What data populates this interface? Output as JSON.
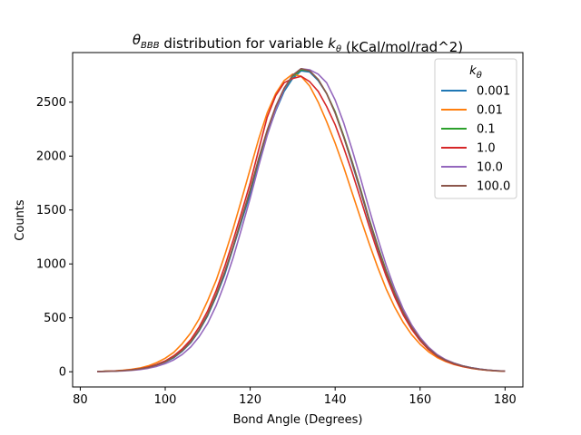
{
  "chart_data": {
    "type": "line",
    "title": "θBBB distribution for variable kθ (kCal/mol/rad^2)",
    "xlabel": "Bond Angle (Degrees)",
    "ylabel": "Counts",
    "xlim": [
      78.2,
      184.2
    ],
    "ylim": [
      -141,
      2960
    ],
    "xticks": [
      80,
      100,
      120,
      140,
      160,
      180
    ],
    "yticks": [
      0,
      500,
      1000,
      1500,
      2000,
      2500
    ],
    "grid": false,
    "legend": {
      "title": "kθ",
      "placement": "top-right"
    },
    "x": [
      84,
      86,
      88,
      90,
      92,
      94,
      96,
      98,
      100,
      102,
      104,
      106,
      108,
      110,
      112,
      114,
      116,
      118,
      120,
      122,
      124,
      126,
      128,
      130,
      132,
      134,
      136,
      138,
      140,
      142,
      144,
      146,
      148,
      150,
      152,
      154,
      156,
      158,
      160,
      162,
      164,
      166,
      168,
      170,
      172,
      174,
      176,
      178,
      180
    ],
    "series": [
      {
        "name": "0.001",
        "color": "#1f77b4",
        "values": [
          2,
          4,
          6,
          10,
          16,
          25,
          40,
          60,
          90,
          130,
          190,
          270,
          380,
          520,
          700,
          900,
          1150,
          1400,
          1650,
          1950,
          2200,
          2420,
          2600,
          2720,
          2790,
          2780,
          2700,
          2580,
          2400,
          2180,
          1930,
          1670,
          1400,
          1150,
          920,
          720,
          550,
          410,
          300,
          215,
          150,
          110,
          80,
          55,
          38,
          25,
          15,
          10,
          6
        ]
      },
      {
        "name": "0.01",
        "color": "#ff7f0e",
        "values": [
          2,
          5,
          8,
          14,
          22,
          35,
          55,
          85,
          125,
          180,
          260,
          360,
          490,
          660,
          850,
          1080,
          1330,
          1600,
          1880,
          2160,
          2400,
          2580,
          2700,
          2760,
          2740,
          2650,
          2500,
          2320,
          2120,
          1900,
          1660,
          1420,
          1190,
          970,
          770,
          600,
          460,
          345,
          255,
          185,
          132,
          95,
          67,
          47,
          32,
          21,
          13,
          8,
          5
        ]
      },
      {
        "name": "0.1",
        "color": "#2ca02c",
        "values": [
          2,
          4,
          6,
          10,
          16,
          26,
          40,
          62,
          92,
          135,
          195,
          275,
          385,
          530,
          710,
          920,
          1160,
          1420,
          1680,
          1970,
          2230,
          2450,
          2620,
          2740,
          2800,
          2790,
          2710,
          2580,
          2410,
          2190,
          1950,
          1690,
          1420,
          1170,
          940,
          735,
          560,
          420,
          305,
          218,
          152,
          108,
          78,
          54,
          37,
          24,
          15,
          9,
          6
        ]
      },
      {
        "name": "1.0",
        "color": "#d62728",
        "values": [
          2,
          4,
          7,
          11,
          18,
          28,
          44,
          68,
          100,
          148,
          212,
          298,
          415,
          565,
          755,
          975,
          1220,
          1480,
          1750,
          2060,
          2360,
          2560,
          2680,
          2720,
          2740,
          2690,
          2600,
          2460,
          2290,
          2080,
          1850,
          1600,
          1350,
          1110,
          890,
          695,
          530,
          395,
          288,
          205,
          145,
          102,
          72,
          50,
          34,
          22,
          14,
          9,
          5
        ]
      },
      {
        "name": "10.0",
        "color": "#9467bd",
        "values": [
          1,
          3,
          5,
          8,
          13,
          20,
          32,
          50,
          75,
          110,
          160,
          230,
          325,
          450,
          615,
          820,
          1060,
          1330,
          1610,
          1910,
          2190,
          2430,
          2620,
          2750,
          2810,
          2800,
          2760,
          2680,
          2520,
          2310,
          2060,
          1790,
          1510,
          1240,
          990,
          770,
          585,
          435,
          318,
          228,
          160,
          113,
          80,
          56,
          38,
          25,
          16,
          10,
          6
        ]
      },
      {
        "name": "100.0",
        "color": "#8c564b",
        "values": [
          2,
          4,
          6,
          10,
          16,
          26,
          40,
          62,
          93,
          136,
          196,
          277,
          388,
          533,
          715,
          925,
          1165,
          1425,
          1690,
          1980,
          2240,
          2460,
          2630,
          2750,
          2810,
          2790,
          2710,
          2580,
          2400,
          2180,
          1940,
          1680,
          1410,
          1160,
          930,
          728,
          555,
          415,
          302,
          216,
          150,
          107,
          77,
          53,
          36,
          24,
          15,
          9,
          6
        ]
      }
    ]
  }
}
